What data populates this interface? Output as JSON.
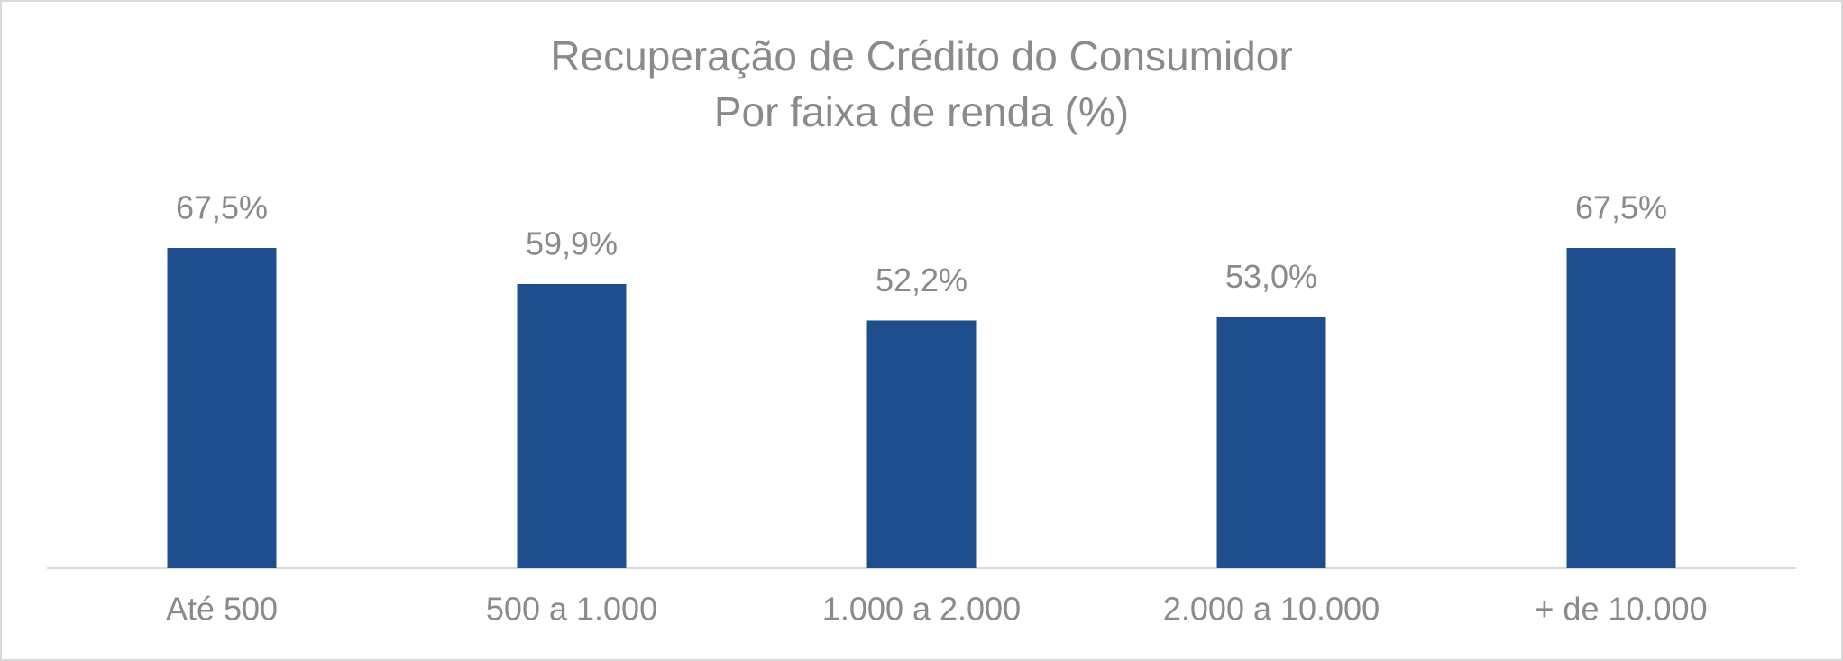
{
  "chart_data": {
    "type": "bar",
    "title": "Recuperação de Crédito do Consumidor",
    "subtitle": "Por faixa de renda (%)",
    "categories": [
      "Até 500",
      "500 a 1.000",
      "1.000 a 2.000",
      "2.000 a 10.000",
      "+ de 10.000"
    ],
    "values": [
      67.5,
      59.9,
      52.2,
      53.0,
      67.5
    ],
    "value_labels": [
      "67,5%",
      "59,9%",
      "52,2%",
      "53,0%",
      "67,5%"
    ],
    "color": "#1f4e8f"
  }
}
